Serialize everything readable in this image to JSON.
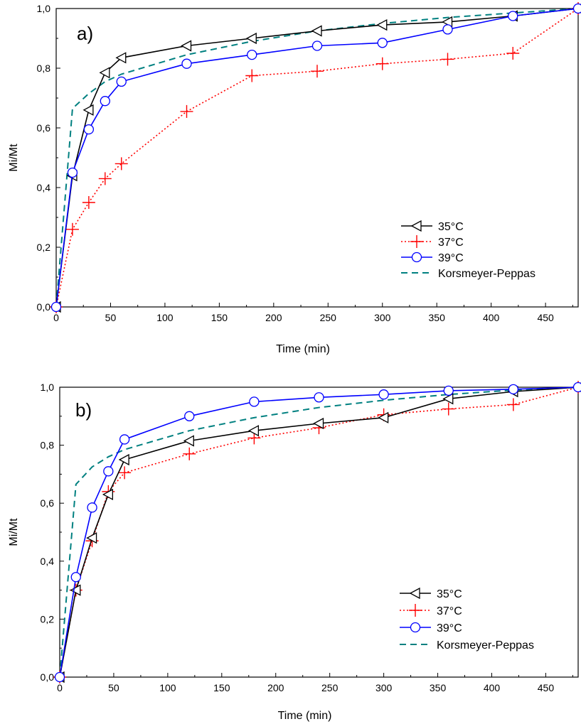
{
  "chart_data": [
    {
      "type": "line",
      "panel_label": "a)",
      "xlabel": "Time (min)",
      "ylabel": "Mi/Mt",
      "xlim": [
        0,
        480
      ],
      "ylim": [
        0,
        1.0
      ],
      "x_ticks": [
        0,
        50,
        100,
        150,
        200,
        250,
        300,
        350,
        400,
        450
      ],
      "x_tick_labels": [
        "0",
        "50",
        "100",
        "150",
        "200",
        "250",
        "300",
        "350",
        "400",
        "450"
      ],
      "y_ticks": [
        0,
        0.2,
        0.4,
        0.6,
        0.8,
        1.0
      ],
      "y_tick_labels": [
        "0,0",
        "0,2",
        "0,4",
        "0,6",
        "0,8",
        "1,0"
      ],
      "legend_position": "bottom-right",
      "series": [
        {
          "name": "35°C",
          "color": "#000000",
          "marker": "left-triangle",
          "line": "solid",
          "x": [
            0,
            15,
            30,
            45,
            60,
            120,
            180,
            240,
            300,
            360,
            420,
            480
          ],
          "y": [
            0,
            0.44,
            0.66,
            0.785,
            0.835,
            0.875,
            0.9,
            0.925,
            0.945,
            0.955,
            0.975,
            1.0
          ]
        },
        {
          "name": "37°C",
          "color": "#ff0000",
          "marker": "plus",
          "line": "dotted",
          "x": [
            0,
            15,
            30,
            45,
            60,
            120,
            180,
            240,
            300,
            360,
            420,
            480
          ],
          "y": [
            0,
            0.26,
            0.35,
            0.43,
            0.48,
            0.655,
            0.775,
            0.79,
            0.815,
            0.83,
            0.85,
            1.0
          ]
        },
        {
          "name": "39°C",
          "color": "#0000ff",
          "marker": "circle",
          "line": "solid",
          "x": [
            0,
            15,
            30,
            45,
            60,
            120,
            180,
            240,
            300,
            360,
            420,
            480
          ],
          "y": [
            0,
            0.45,
            0.595,
            0.69,
            0.755,
            0.815,
            0.845,
            0.875,
            0.885,
            0.93,
            0.975,
            1.0
          ]
        },
        {
          "name": "Korsmeyer-Peppas",
          "color": "#008080",
          "marker": "none",
          "line": "dashed",
          "x": [
            0,
            15,
            30,
            45,
            60,
            120,
            180,
            240,
            300,
            360,
            420,
            480
          ],
          "y": [
            0,
            0.665,
            0.715,
            0.755,
            0.78,
            0.845,
            0.89,
            0.925,
            0.95,
            0.97,
            0.985,
            1.0
          ]
        }
      ]
    },
    {
      "type": "line",
      "panel_label": "b)",
      "xlabel": "Time (min)",
      "ylabel": "Mi/Mt",
      "xlim": [
        0,
        480
      ],
      "ylim": [
        0,
        1.0
      ],
      "x_ticks": [
        0,
        50,
        100,
        150,
        200,
        250,
        300,
        350,
        400,
        450
      ],
      "x_tick_labels": [
        "0",
        "50",
        "100",
        "150",
        "200",
        "250",
        "300",
        "350",
        "400",
        "450"
      ],
      "y_ticks": [
        0,
        0.2,
        0.4,
        0.6,
        0.8,
        1.0
      ],
      "y_tick_labels": [
        "0,0",
        "0,2",
        "0,4",
        "0,6",
        "0,8",
        "1,0"
      ],
      "legend_position": "bottom-right",
      "series": [
        {
          "name": "35°C",
          "color": "#000000",
          "marker": "left-triangle",
          "line": "solid",
          "x": [
            0,
            15,
            30,
            45,
            60,
            120,
            180,
            240,
            300,
            360,
            420,
            480
          ],
          "y": [
            0,
            0.3,
            0.48,
            0.63,
            0.75,
            0.815,
            0.85,
            0.875,
            0.895,
            0.96,
            0.985,
            1.0
          ]
        },
        {
          "name": "37°C",
          "color": "#ff0000",
          "marker": "plus",
          "line": "dotted",
          "x": [
            0,
            15,
            30,
            45,
            60,
            120,
            180,
            240,
            300,
            360,
            420,
            480
          ],
          "y": [
            0,
            0.3,
            0.47,
            0.64,
            0.705,
            0.77,
            0.825,
            0.86,
            0.905,
            0.925,
            0.94,
            1.0
          ]
        },
        {
          "name": "39°C",
          "color": "#0000ff",
          "marker": "circle",
          "line": "solid",
          "x": [
            0,
            15,
            30,
            45,
            60,
            120,
            180,
            240,
            300,
            360,
            420,
            480
          ],
          "y": [
            0,
            0.345,
            0.585,
            0.71,
            0.82,
            0.9,
            0.95,
            0.965,
            0.975,
            0.988,
            0.993,
            1.0
          ]
        },
        {
          "name": "Korsmeyer-Peppas",
          "color": "#008080",
          "marker": "none",
          "line": "dashed",
          "x": [
            0,
            15,
            30,
            45,
            60,
            120,
            180,
            240,
            300,
            360,
            420,
            480
          ],
          "y": [
            0,
            0.665,
            0.725,
            0.76,
            0.785,
            0.85,
            0.895,
            0.93,
            0.955,
            0.975,
            0.99,
            1.0
          ]
        }
      ]
    }
  ]
}
